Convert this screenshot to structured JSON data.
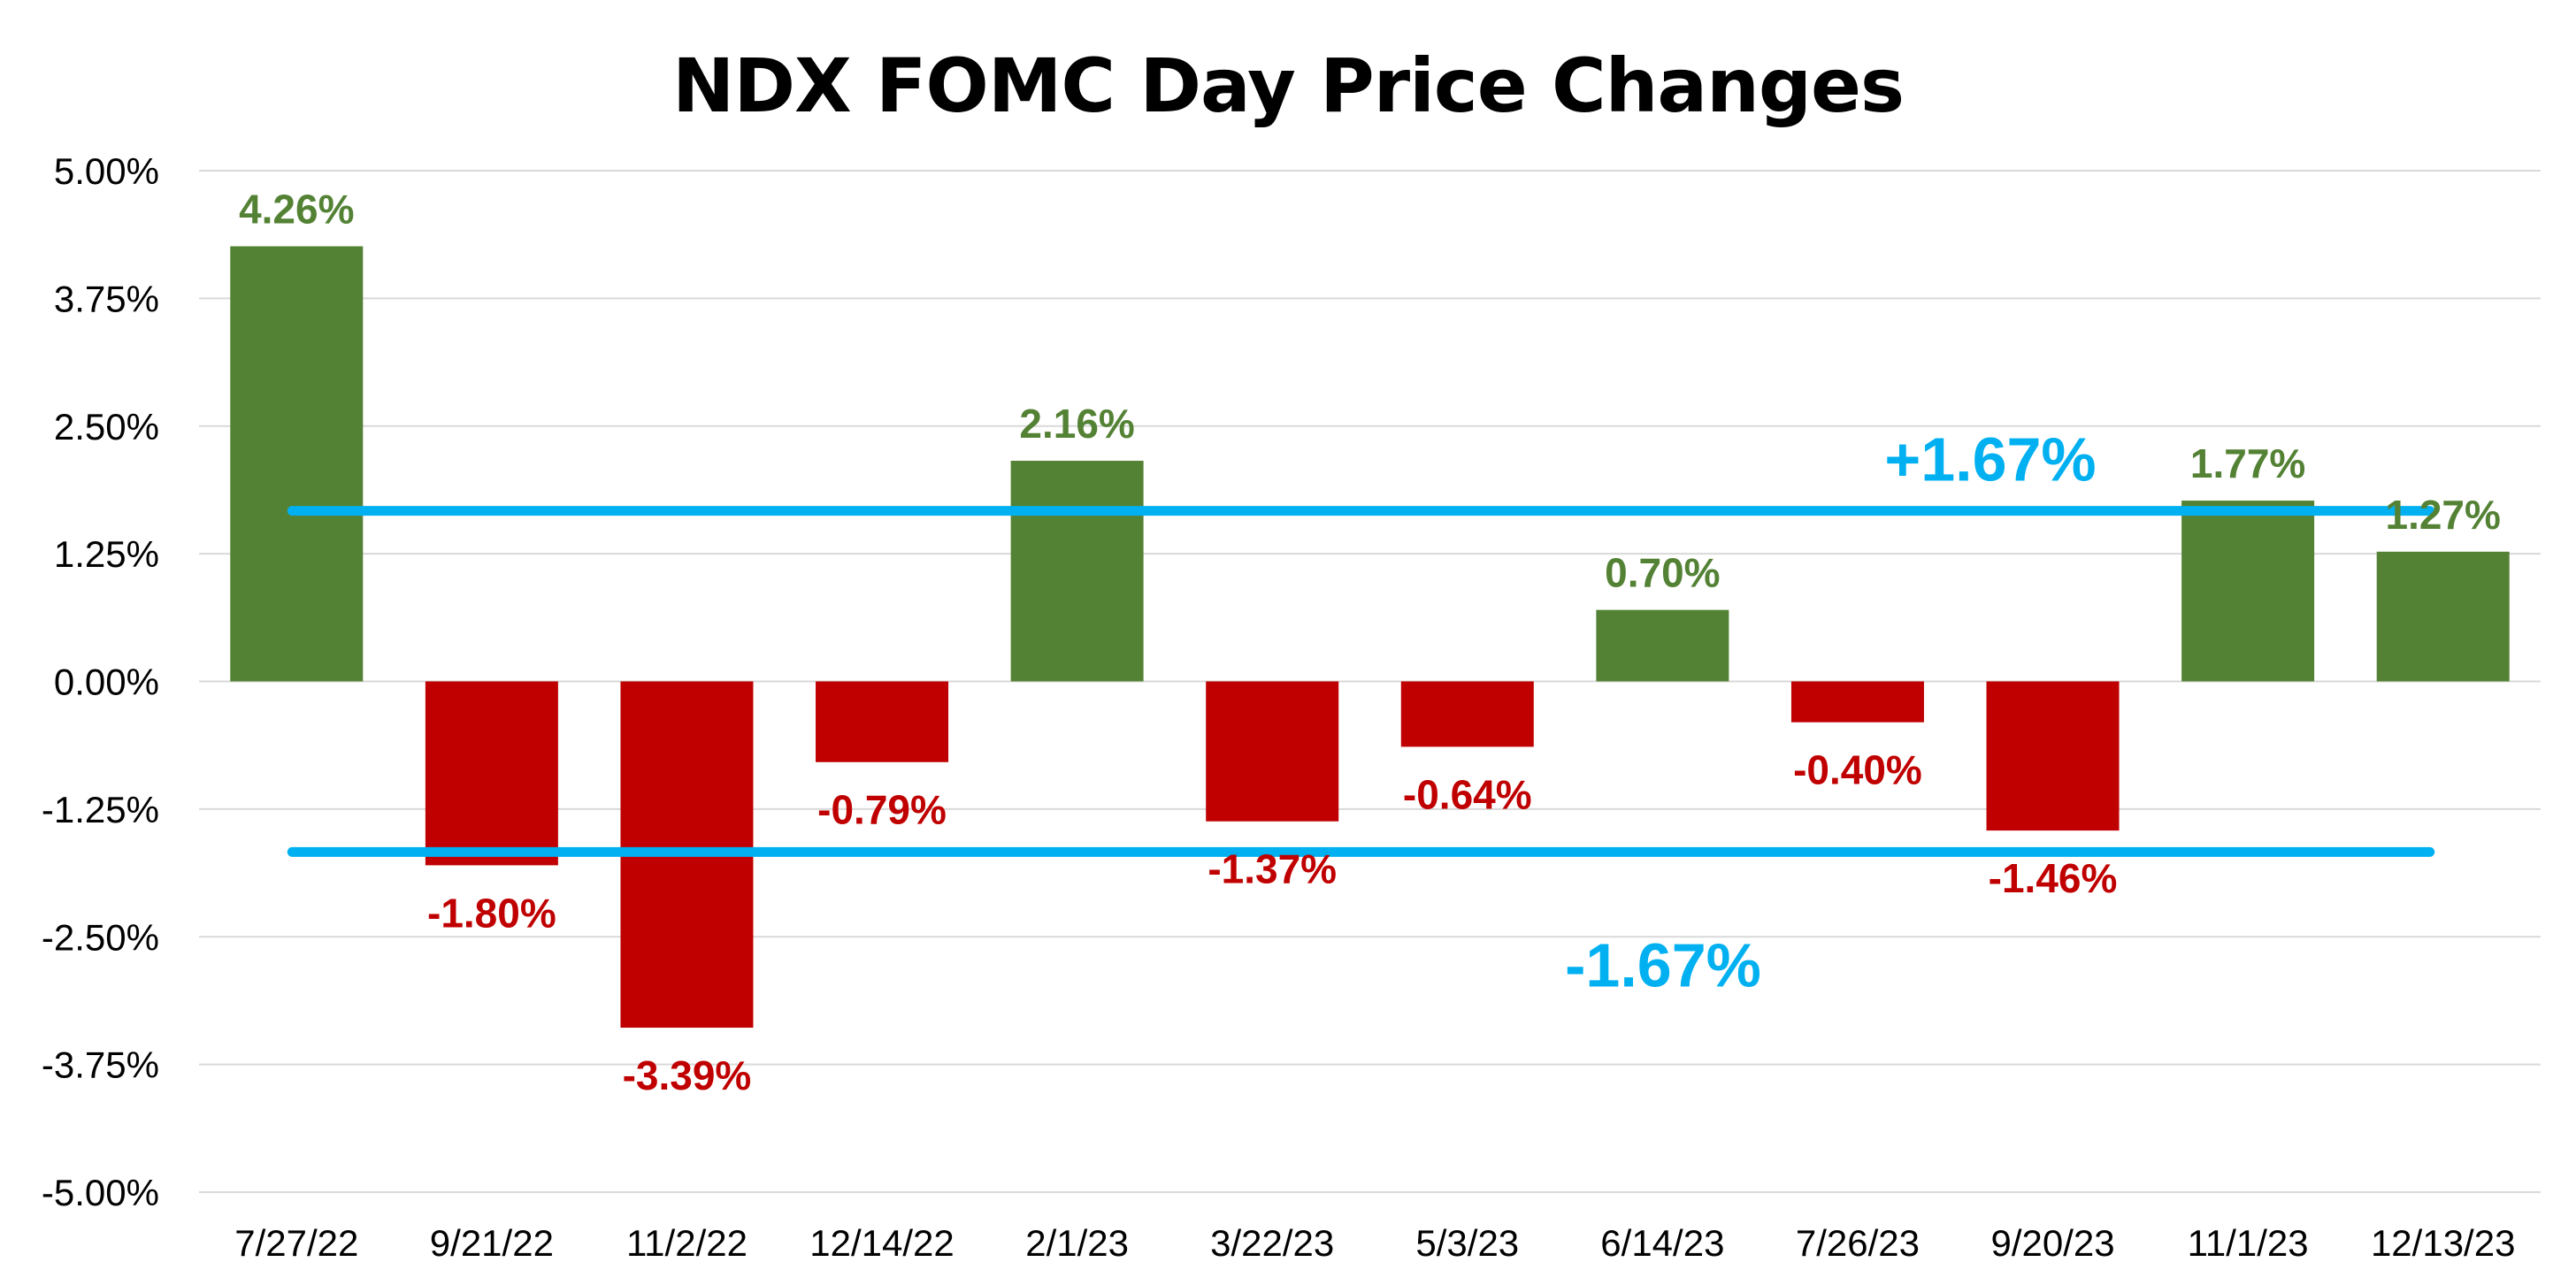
{
  "chart_data": {
    "type": "bar",
    "title": "NDX FOMC Day Price Changes",
    "xlabel": "",
    "ylabel": "",
    "ylim": [
      -5.0,
      5.0
    ],
    "y_ticks": [
      5.0,
      3.75,
      2.5,
      1.25,
      0.0,
      -1.25,
      -2.5,
      -3.75,
      -5.0
    ],
    "y_tick_labels": [
      "5.00%",
      "3.75%",
      "2.50%",
      "1.25%",
      "0.00%",
      "-1.25%",
      "-2.50%",
      "-3.75%",
      "-5.00%"
    ],
    "grid": true,
    "legend": "none",
    "categories": [
      "7/27/22",
      "9/21/22",
      "11/2/22",
      "12/14/22",
      "2/1/23",
      "3/22/23",
      "5/3/23",
      "6/14/23",
      "7/26/23",
      "9/20/23",
      "11/1/23",
      "12/13/23"
    ],
    "values": [
      4.26,
      -1.8,
      -3.39,
      -0.79,
      2.16,
      -1.37,
      -0.64,
      0.7,
      -0.4,
      -1.46,
      1.77,
      1.27
    ],
    "data_labels": [
      "4.26%",
      "-1.80%",
      "-3.39%",
      "-0.79%",
      "2.16%",
      "-1.37%",
      "-0.64%",
      "0.70%",
      "-0.40%",
      "-1.46%",
      "1.77%",
      "1.27%"
    ],
    "reference_lines": [
      {
        "value": 1.67,
        "label": "+1.67%"
      },
      {
        "value": -1.67,
        "label": "-1.67%"
      }
    ],
    "colors": {
      "positive": "#548235",
      "negative": "#C00000",
      "reference": "#00B0F0",
      "grid": "#D9D9D9"
    }
  }
}
